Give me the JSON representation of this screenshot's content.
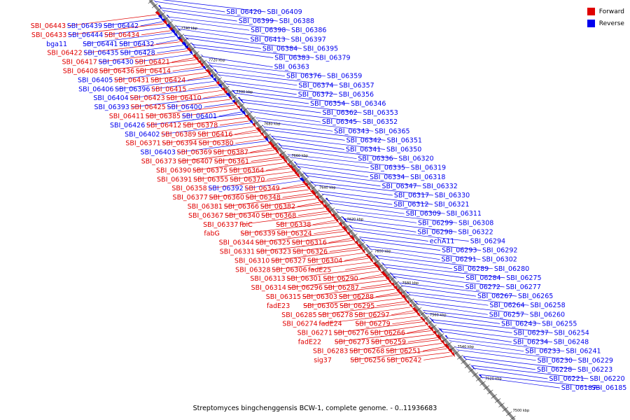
{
  "legend": {
    "forward_label": "Forward",
    "reverse_label": "Reverse",
    "forward_color": "#e00000",
    "reverse_color": "#0000ee"
  },
  "colors": {
    "axis": "#8a8a8a",
    "tick": "#333333"
  },
  "caption": "Streptomyces bingchenggensis BCW-1, complete genome. - 0..11936683",
  "ruler": [
    "7740 kbp",
    "7720 kbp",
    "7700 kbp",
    "7680 kbp",
    "7660 kbp",
    "7640 kbp",
    "7620 kbp",
    "7600 kbp",
    "7580 kbp",
    "7560 kbp",
    "7540 kbp",
    "7520 kbp",
    "7500 kbp"
  ],
  "genes_reverse_right": [
    "SBI_06420",
    "SBI_06409",
    "SBI_06399",
    "SBI_06388",
    "SBI_06398",
    "SBI_06386",
    "SBI_06413",
    "SBI_06397",
    "SBI_06384",
    "SBI_06395",
    "SBI_06383",
    "SBI_06379",
    "SBI_06363",
    "SBI_06376",
    "SBI_06359",
    "SBI_06374",
    "SBI_06357",
    "SBI_06372",
    "SBI_06356",
    "SBI_06354",
    "SBI_06346",
    "SBI_06362",
    "SBI_06353",
    "SBI_06345",
    "SBI_06352",
    "SBI_06343",
    "SBI_06365",
    "SBI_06342",
    "SBI_06351",
    "SBI_06341",
    "SBI_06350",
    "SBI_06336",
    "SBI_06320",
    "SBI_06335",
    "SBI_06319",
    "SBI_06334",
    "SBI_06318",
    "SBI_06347",
    "SBI_06332",
    "SBI_06317",
    "SBI_06330",
    "SBI_06312",
    "SBI_06321",
    "SBI_06309",
    "SBI_06311",
    "SBI_06299",
    "SBI_06308",
    "SBI_06298",
    "SBI_06322",
    "echA11",
    "SBI_06294",
    "SBI_06293",
    "SBI_06292",
    "SBI_06291",
    "SBI_06302",
    "SBI_06289",
    "SBI_06280",
    "SBI_06284",
    "SBI_06275",
    "SBI_06272",
    "SBI_06277",
    "SBI_06267",
    "SBI_06265",
    "SBI_06264",
    "SBI_06258",
    "SBI_06257",
    "SBI_06260",
    "SBI_06243",
    "SBI_06255",
    "SBI_06237",
    "SBI_06254",
    "SBI_06234",
    "SBI_06248",
    "SBI_06233",
    "SBI_06241",
    "SBI_06230",
    "SBI_06229",
    "SBI_06228",
    "SBI_06223",
    "SBI_06221",
    "SBI_06220",
    "SBI_06187",
    "SBI_06185"
  ],
  "genes_left": [
    {
      "name": "SBI_06443",
      "strand": "F"
    },
    {
      "name": "SBI_06439",
      "strand": "R"
    },
    {
      "name": "SBI_06442",
      "strand": "R"
    },
    {
      "name": "SBI_06433",
      "strand": "F"
    },
    {
      "name": "SBI_06444",
      "strand": "R"
    },
    {
      "name": "SBI_06434",
      "strand": "F"
    },
    {
      "name": "bga11",
      "strand": "R"
    },
    {
      "name": "SBI_06441",
      "strand": "R"
    },
    {
      "name": "SBI_06432",
      "strand": "R"
    },
    {
      "name": "SBI_06422",
      "strand": "F"
    },
    {
      "name": "SBI_06435",
      "strand": "R"
    },
    {
      "name": "SBI_06428",
      "strand": "R"
    },
    {
      "name": "SBI_06417",
      "strand": "F"
    },
    {
      "name": "SBI_06430",
      "strand": "R"
    },
    {
      "name": "SBI_06421",
      "strand": "F"
    },
    {
      "name": "SBI_06408",
      "strand": "F"
    },
    {
      "name": "SBI_06436",
      "strand": "F"
    },
    {
      "name": "SBI_06414",
      "strand": "F"
    },
    {
      "name": "SBI_06405",
      "strand": "R"
    },
    {
      "name": "SBI_06431",
      "strand": "F"
    },
    {
      "name": "SBI_06424",
      "strand": "F"
    },
    {
      "name": "SBI_06406",
      "strand": "R"
    },
    {
      "name": "SBI_06396",
      "strand": "R"
    },
    {
      "name": "SBI_06415",
      "strand": "F"
    },
    {
      "name": "SBI_06404",
      "strand": "R"
    },
    {
      "name": "SBI_06423",
      "strand": "F"
    },
    {
      "name": "SBI_06410",
      "strand": "F"
    },
    {
      "name": "SBI_06393",
      "strand": "R"
    },
    {
      "name": "SBI_06425",
      "strand": "F"
    },
    {
      "name": "SBI_06400",
      "strand": "R"
    },
    {
      "name": "SBI_06411",
      "strand": "F"
    },
    {
      "name": "SBI_06385",
      "strand": "F"
    },
    {
      "name": "SBI_06401",
      "strand": "R"
    },
    {
      "name": "SBI_06426",
      "strand": "R"
    },
    {
      "name": "SBI_06412",
      "strand": "F"
    },
    {
      "name": "SBI_06378",
      "strand": "F"
    },
    {
      "name": "SBI_06402",
      "strand": "R"
    },
    {
      "name": "SBI_06389",
      "strand": "F"
    },
    {
      "name": "SBI_06416",
      "strand": "F"
    },
    {
      "name": "SBI_06371",
      "strand": "F"
    },
    {
      "name": "SBI_06394",
      "strand": "F"
    },
    {
      "name": "SBI_06380",
      "strand": "F"
    },
    {
      "name": "SBI_06403",
      "strand": "R"
    },
    {
      "name": "SBI_06369",
      "strand": "F"
    },
    {
      "name": "SBI_06387",
      "strand": "F"
    },
    {
      "name": "SBI_06373",
      "strand": "F"
    },
    {
      "name": "SBI_06407",
      "strand": "F"
    },
    {
      "name": "SBI_06361",
      "strand": "F"
    },
    {
      "name": "SBI_06390",
      "strand": "F"
    },
    {
      "name": "SBI_06375",
      "strand": "F"
    },
    {
      "name": "SBI_06364",
      "strand": "F"
    },
    {
      "name": "SBI_06391",
      "strand": "F"
    },
    {
      "name": "SBI_06355",
      "strand": "F"
    },
    {
      "name": "SBI_06370",
      "strand": "F"
    },
    {
      "name": "SBI_06358",
      "strand": "F"
    },
    {
      "name": "SBI_06392",
      "strand": "R"
    },
    {
      "name": "SBI_06349",
      "strand": "F"
    },
    {
      "name": "SBI_06377",
      "strand": "F"
    },
    {
      "name": "SBI_06360",
      "strand": "F"
    },
    {
      "name": "SBI_06348",
      "strand": "F"
    },
    {
      "name": "SBI_06381",
      "strand": "F"
    },
    {
      "name": "SBI_06366",
      "strand": "F"
    },
    {
      "name": "SBI_06382",
      "strand": "F"
    },
    {
      "name": "SBI_06367",
      "strand": "F"
    },
    {
      "name": "SBI_06340",
      "strand": "F"
    },
    {
      "name": "SBI_06368",
      "strand": "F"
    },
    {
      "name": "SBI_06337",
      "strand": "F"
    },
    {
      "name": "fbiC",
      "strand": "F"
    },
    {
      "name": "SBI_06338",
      "strand": "F"
    },
    {
      "name": "fabG",
      "strand": "F"
    },
    {
      "name": "SBI_06339",
      "strand": "F"
    },
    {
      "name": "SBI_06324",
      "strand": "F"
    },
    {
      "name": "SBI_06344",
      "strand": "F"
    },
    {
      "name": "SBI_06325",
      "strand": "F"
    },
    {
      "name": "SBI_06316",
      "strand": "F"
    },
    {
      "name": "SBI_06331",
      "strand": "F"
    },
    {
      "name": "SBI_06323",
      "strand": "F"
    },
    {
      "name": "SBI_06326",
      "strand": "F"
    },
    {
      "name": "SBI_06310",
      "strand": "F"
    },
    {
      "name": "SBI_06327",
      "strand": "F"
    },
    {
      "name": "SBI_06304",
      "strand": "F"
    },
    {
      "name": "SBI_06328",
      "strand": "F"
    },
    {
      "name": "SBI_06306",
      "strand": "F"
    },
    {
      "name": "fadE25",
      "strand": "F"
    },
    {
      "name": "SBI_06313",
      "strand": "F"
    },
    {
      "name": "SBI_06301",
      "strand": "F"
    },
    {
      "name": "SBI_06290",
      "strand": "F"
    },
    {
      "name": "SBI_06314",
      "strand": "F"
    },
    {
      "name": "SBI_06296",
      "strand": "F"
    },
    {
      "name": "SBI_06287",
      "strand": "F"
    },
    {
      "name": "SBI_06315",
      "strand": "F"
    },
    {
      "name": "SBI_06303",
      "strand": "F"
    },
    {
      "name": "SBI_06288",
      "strand": "F"
    },
    {
      "name": "fadE23",
      "strand": "F"
    },
    {
      "name": "SBI_06305",
      "strand": "F"
    },
    {
      "name": "SBI_06295",
      "strand": "F"
    },
    {
      "name": "SBI_06285",
      "strand": "F"
    },
    {
      "name": "SBI_06278",
      "strand": "F"
    },
    {
      "name": "SBI_06297",
      "strand": "F"
    },
    {
      "name": "SBI_06274",
      "strand": "F"
    },
    {
      "name": "fadE24",
      "strand": "F"
    },
    {
      "name": "SBI_06279",
      "strand": "F"
    },
    {
      "name": "SBI_06271",
      "strand": "F"
    },
    {
      "name": "SBI_06276",
      "strand": "F"
    },
    {
      "name": "SBI_06266",
      "strand": "F"
    },
    {
      "name": "fadE22",
      "strand": "F"
    },
    {
      "name": "SBI_06273",
      "strand": "F"
    },
    {
      "name": "SBI_06259",
      "strand": "F"
    },
    {
      "name": "SBI_06283",
      "strand": "F"
    },
    {
      "name": "SBI_06268",
      "strand": "F"
    },
    {
      "name": "SBI_06251",
      "strand": "F"
    },
    {
      "name": "sig37",
      "strand": "F"
    },
    {
      "name": "SBI_06256",
      "strand": "F"
    },
    {
      "name": "SBI_06242",
      "strand": "F"
    }
  ]
}
